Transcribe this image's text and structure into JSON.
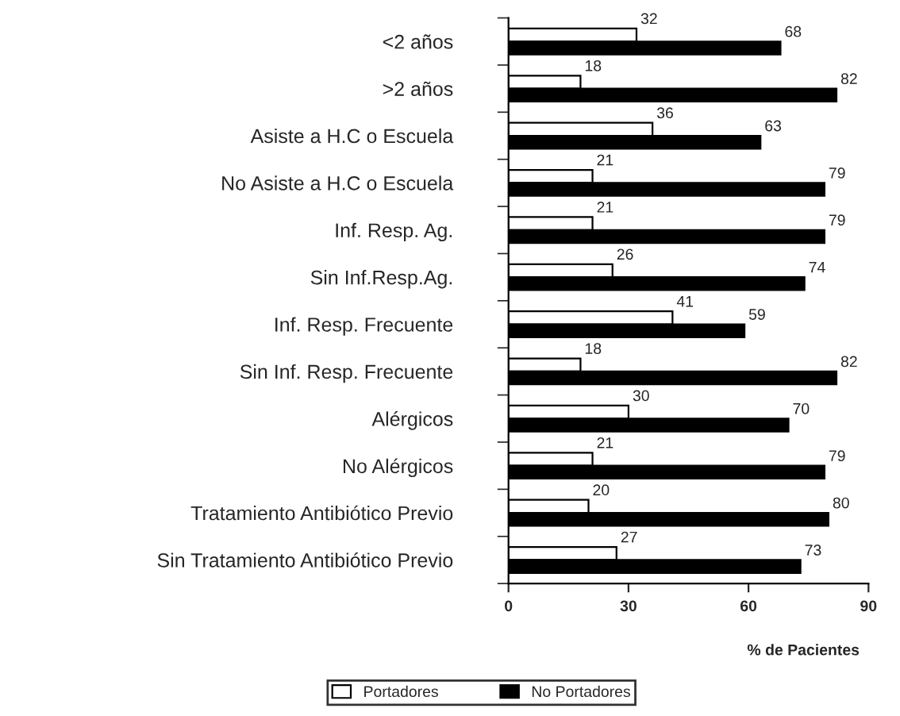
{
  "chart_data": {
    "type": "bar",
    "orientation": "horizontal",
    "xlabel": "% de Pacientes",
    "categories": [
      "<2 años",
      ">2 años",
      "Asiste a H.C o Escuela",
      "No Asiste a H.C o Escuela",
      "Inf. Resp. Ag.",
      "Sin Inf.Resp.Ag.",
      "Inf. Resp. Frecuente",
      "Sin Inf. Resp. Frecuente",
      "Alérgicos",
      "No Alérgicos",
      "Tratamiento Antibiótico Previo",
      "Sin Tratamiento Antibiótico Previo"
    ],
    "series": [
      {
        "name": "Portadores",
        "color": "#ffffff",
        "values": [
          32,
          18,
          36,
          21,
          21,
          26,
          41,
          18,
          30,
          21,
          20,
          27
        ]
      },
      {
        "name": "No Portadores",
        "color": "#000000",
        "values": [
          68,
          82,
          63,
          79,
          79,
          74,
          59,
          82,
          70,
          79,
          80,
          73
        ]
      }
    ],
    "xlim": [
      0,
      90
    ],
    "xticks": [
      0,
      30,
      60,
      90
    ],
    "data_labels": true,
    "legend": "bottom",
    "grid": false
  }
}
